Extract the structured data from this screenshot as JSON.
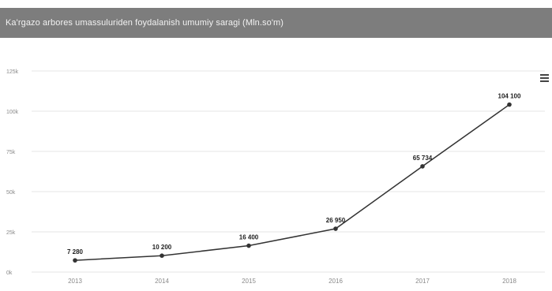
{
  "header": {
    "title": "Ka'rgazo arbores umassuluriden foydalanish umumiy saragi (Mln.so'm)"
  },
  "toolbar": {
    "menu_icon": "hamburger-menu-icon"
  },
  "colors": {
    "header_bg": "#7d7d7d",
    "line": "#333333",
    "grid": "#e6e6e6"
  },
  "chart_data": {
    "type": "line",
    "title": "Ka'rgazo arbores umassuluriden foydalanish umumiy saragi (Mln.so'm)",
    "xlabel": "",
    "ylabel": "",
    "categories": [
      "2013",
      "2014",
      "2015",
      "2016",
      "2017",
      "2018"
    ],
    "values": [
      7280,
      10200,
      16400,
      26950,
      65734,
      104100
    ],
    "value_labels": [
      "7 280",
      "10 200",
      "16 400",
      "26 950",
      "65 734",
      "104 100"
    ],
    "ylim": [
      0,
      125000
    ],
    "yticks": [
      0,
      25000,
      50000,
      75000,
      100000,
      125000
    ],
    "ytick_labels": [
      "0k",
      "25k",
      "50k",
      "75k",
      "100k",
      "125k"
    ],
    "grid": true,
    "legend": false
  }
}
